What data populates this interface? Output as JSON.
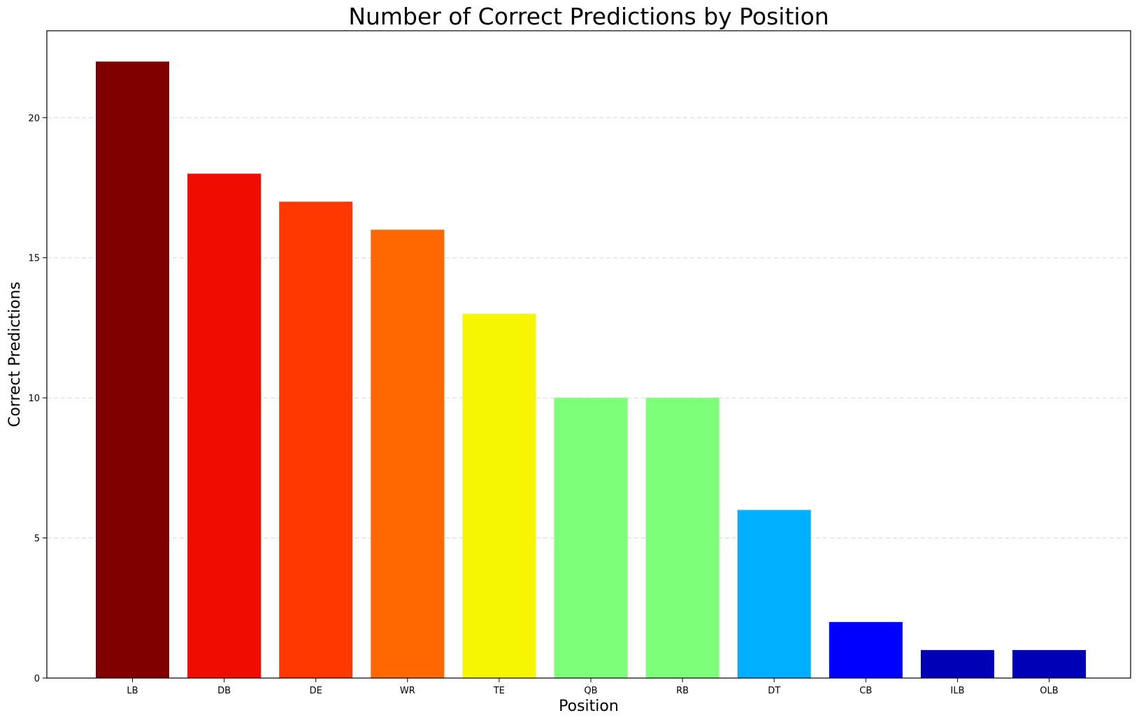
{
  "chart_data": {
    "type": "bar",
    "title": "Number of Correct Predictions by Position",
    "xlabel": "Position",
    "ylabel": "Correct Predictions",
    "categories": [
      "LB",
      "DB",
      "DE",
      "WR",
      "TE",
      "QB",
      "RB",
      "DT",
      "CB",
      "ILB",
      "OLB"
    ],
    "values": [
      22,
      18,
      17,
      16,
      13,
      10,
      10,
      6,
      2,
      1,
      1
    ],
    "colors": [
      "#800000",
      "#f10c00",
      "#ff3800",
      "#ff6800",
      "#f6f600",
      "#7dff7a",
      "#7dff7a",
      "#00b0ff",
      "#0000ff",
      "#0000b6",
      "#0000b6"
    ],
    "yticks": [
      0,
      5,
      10,
      15,
      20
    ],
    "ylim": [
      0,
      23.1
    ],
    "grid": "y-dashed",
    "legend": "none"
  }
}
